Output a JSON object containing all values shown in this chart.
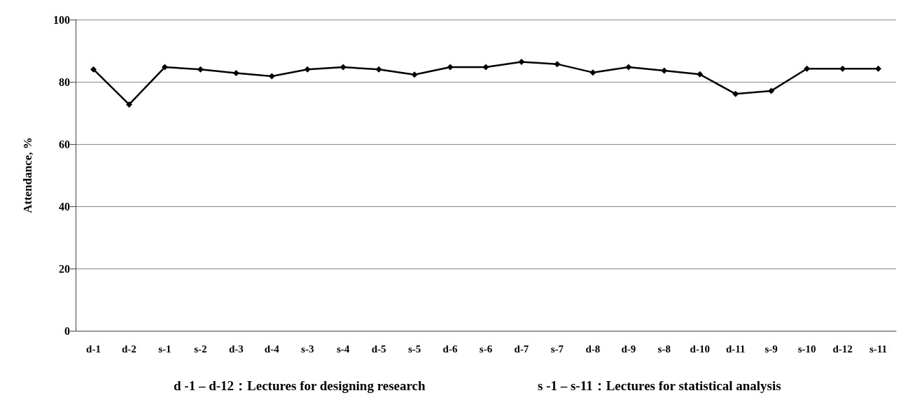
{
  "chart_data": {
    "type": "line",
    "ylabel": "Attendance, %",
    "categories": [
      "d-1",
      "d-2",
      "s-1",
      "s-2",
      "d-3",
      "d-4",
      "s-3",
      "s-4",
      "d-5",
      "s-5",
      "d-6",
      "s-6",
      "d-7",
      "s-7",
      "d-8",
      "d-9",
      "s-8",
      "d-10",
      "d-11",
      "s-9",
      "s-10",
      "d-12",
      "s-11"
    ],
    "series": [
      {
        "color": "#000000",
        "values": [
          84.0,
          72.7,
          84.7,
          84.0,
          82.8,
          81.8,
          84.0,
          84.7,
          84.0,
          82.3,
          84.7,
          84.7,
          86.4,
          85.7,
          83.0,
          84.7,
          83.6,
          82.4,
          76.1,
          77.1,
          84.2,
          84.2,
          84.2
        ]
      }
    ],
    "ylim": [
      0,
      100
    ],
    "yticks": [
      0,
      20,
      40,
      60,
      80,
      100
    ],
    "grid": "y",
    "marker": "diamond",
    "line_style": "solid",
    "annotations": [
      "d -1 – d-12：Lectures for designing research",
      "s -1 – s-11：Lectures for statistical analysis"
    ]
  }
}
